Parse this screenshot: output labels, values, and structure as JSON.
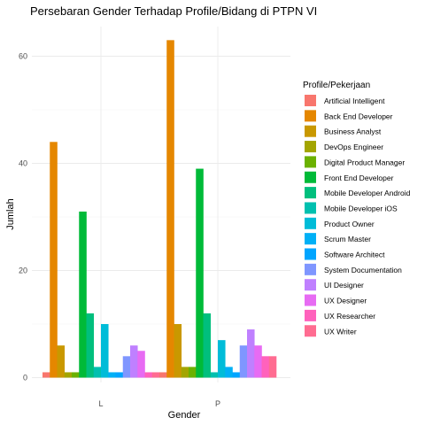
{
  "chart_data": {
    "type": "bar",
    "title": "Persebaran Gender Terhadap Profile/Bidang di PTPN VI",
    "xlabel": "Gender",
    "ylabel": "Jumlah",
    "categories": [
      "L",
      "P"
    ],
    "ylim": [
      0,
      65
    ],
    "yticks": [
      0,
      20,
      40,
      60
    ],
    "grid": true,
    "legend": {
      "title": "Profile/Pekerjaan",
      "position": "right"
    },
    "series": [
      {
        "name": "Artificial Intelligent",
        "color": "#F8766D",
        "values": [
          1,
          1
        ]
      },
      {
        "name": "Back End Developer",
        "color": "#E58700",
        "values": [
          44,
          63
        ]
      },
      {
        "name": "Business Analyst",
        "color": "#C99800",
        "values": [
          6,
          10
        ]
      },
      {
        "name": "DevOps Engineer",
        "color": "#A3A500",
        "values": [
          1,
          2
        ]
      },
      {
        "name": "Digital Product Manager",
        "color": "#6BB100",
        "values": [
          1,
          2
        ]
      },
      {
        "name": "Front End Developer",
        "color": "#00BA38",
        "values": [
          31,
          39
        ]
      },
      {
        "name": "Mobile Developer Android",
        "color": "#00BF7D",
        "values": [
          12,
          12
        ]
      },
      {
        "name": "Mobile Developer iOS",
        "color": "#00C0AF",
        "values": [
          2,
          1
        ]
      },
      {
        "name": "Product Owner",
        "color": "#00BCD8",
        "values": [
          10,
          7
        ]
      },
      {
        "name": "Scrum Master",
        "color": "#00B0F6",
        "values": [
          1,
          2
        ]
      },
      {
        "name": "Software Architect",
        "color": "#00A5FF",
        "values": [
          1,
          1
        ]
      },
      {
        "name": "System Documentation",
        "color": "#7F96FF",
        "values": [
          4,
          6
        ]
      },
      {
        "name": "UI Designer",
        "color": "#BF80FF",
        "values": [
          6,
          9
        ]
      },
      {
        "name": "UX Designer",
        "color": "#E76BF3",
        "values": [
          5,
          6
        ]
      },
      {
        "name": "UX Researcher",
        "color": "#FF62BC",
        "values": [
          1,
          4
        ]
      },
      {
        "name": "UX Writer",
        "color": "#FF6C91",
        "values": [
          1,
          4
        ]
      }
    ]
  }
}
